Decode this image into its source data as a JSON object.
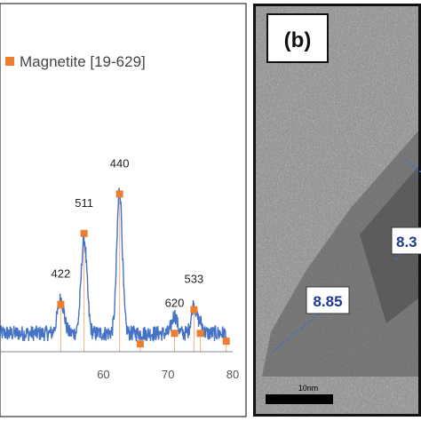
{
  "chart_data": {
    "type": "line",
    "series": [
      {
        "name": "Magnetite [19-629]",
        "kind": "reference-markers"
      }
    ],
    "x_ticks": [
      "60",
      "70",
      "80"
    ],
    "xlim": [
      44,
      80
    ],
    "ylim": [
      0,
      100
    ],
    "pattern": {
      "baseline": 7,
      "peaks": [
        {
          "x": 53.4,
          "height": 13,
          "width": 0.5
        },
        {
          "x": 57.0,
          "height": 36,
          "width": 0.45
        },
        {
          "x": 62.5,
          "height": 55,
          "width": 0.42
        },
        {
          "x": 71.0,
          "height": 7,
          "width": 0.4
        },
        {
          "x": 74.0,
          "height": 11,
          "width": 0.4
        },
        {
          "x": 75.0,
          "height": 4,
          "width": 0.35
        }
      ]
    },
    "reference_peaks": [
      {
        "x": 53.4,
        "y": 18,
        "label": "422"
      },
      {
        "x": 57.0,
        "y": 45,
        "label": "511"
      },
      {
        "x": 62.5,
        "y": 60,
        "label": "440"
      },
      {
        "x": 65.7,
        "y": 3,
        "label": ""
      },
      {
        "x": 71.0,
        "y": 7,
        "label": "620"
      },
      {
        "x": 74.0,
        "y": 16,
        "label": "533"
      },
      {
        "x": 75.0,
        "y": 7,
        "label": ""
      },
      {
        "x": 79.0,
        "y": 4,
        "label": ""
      }
    ],
    "colors": {
      "line": "#4472c4",
      "marker": "#ed7d31",
      "ref_line": "#f4b183"
    }
  },
  "tem": {
    "panel_label": "(b)",
    "measurements": [
      "8.85",
      "8.3"
    ],
    "scale_bar_label": "10nm"
  }
}
